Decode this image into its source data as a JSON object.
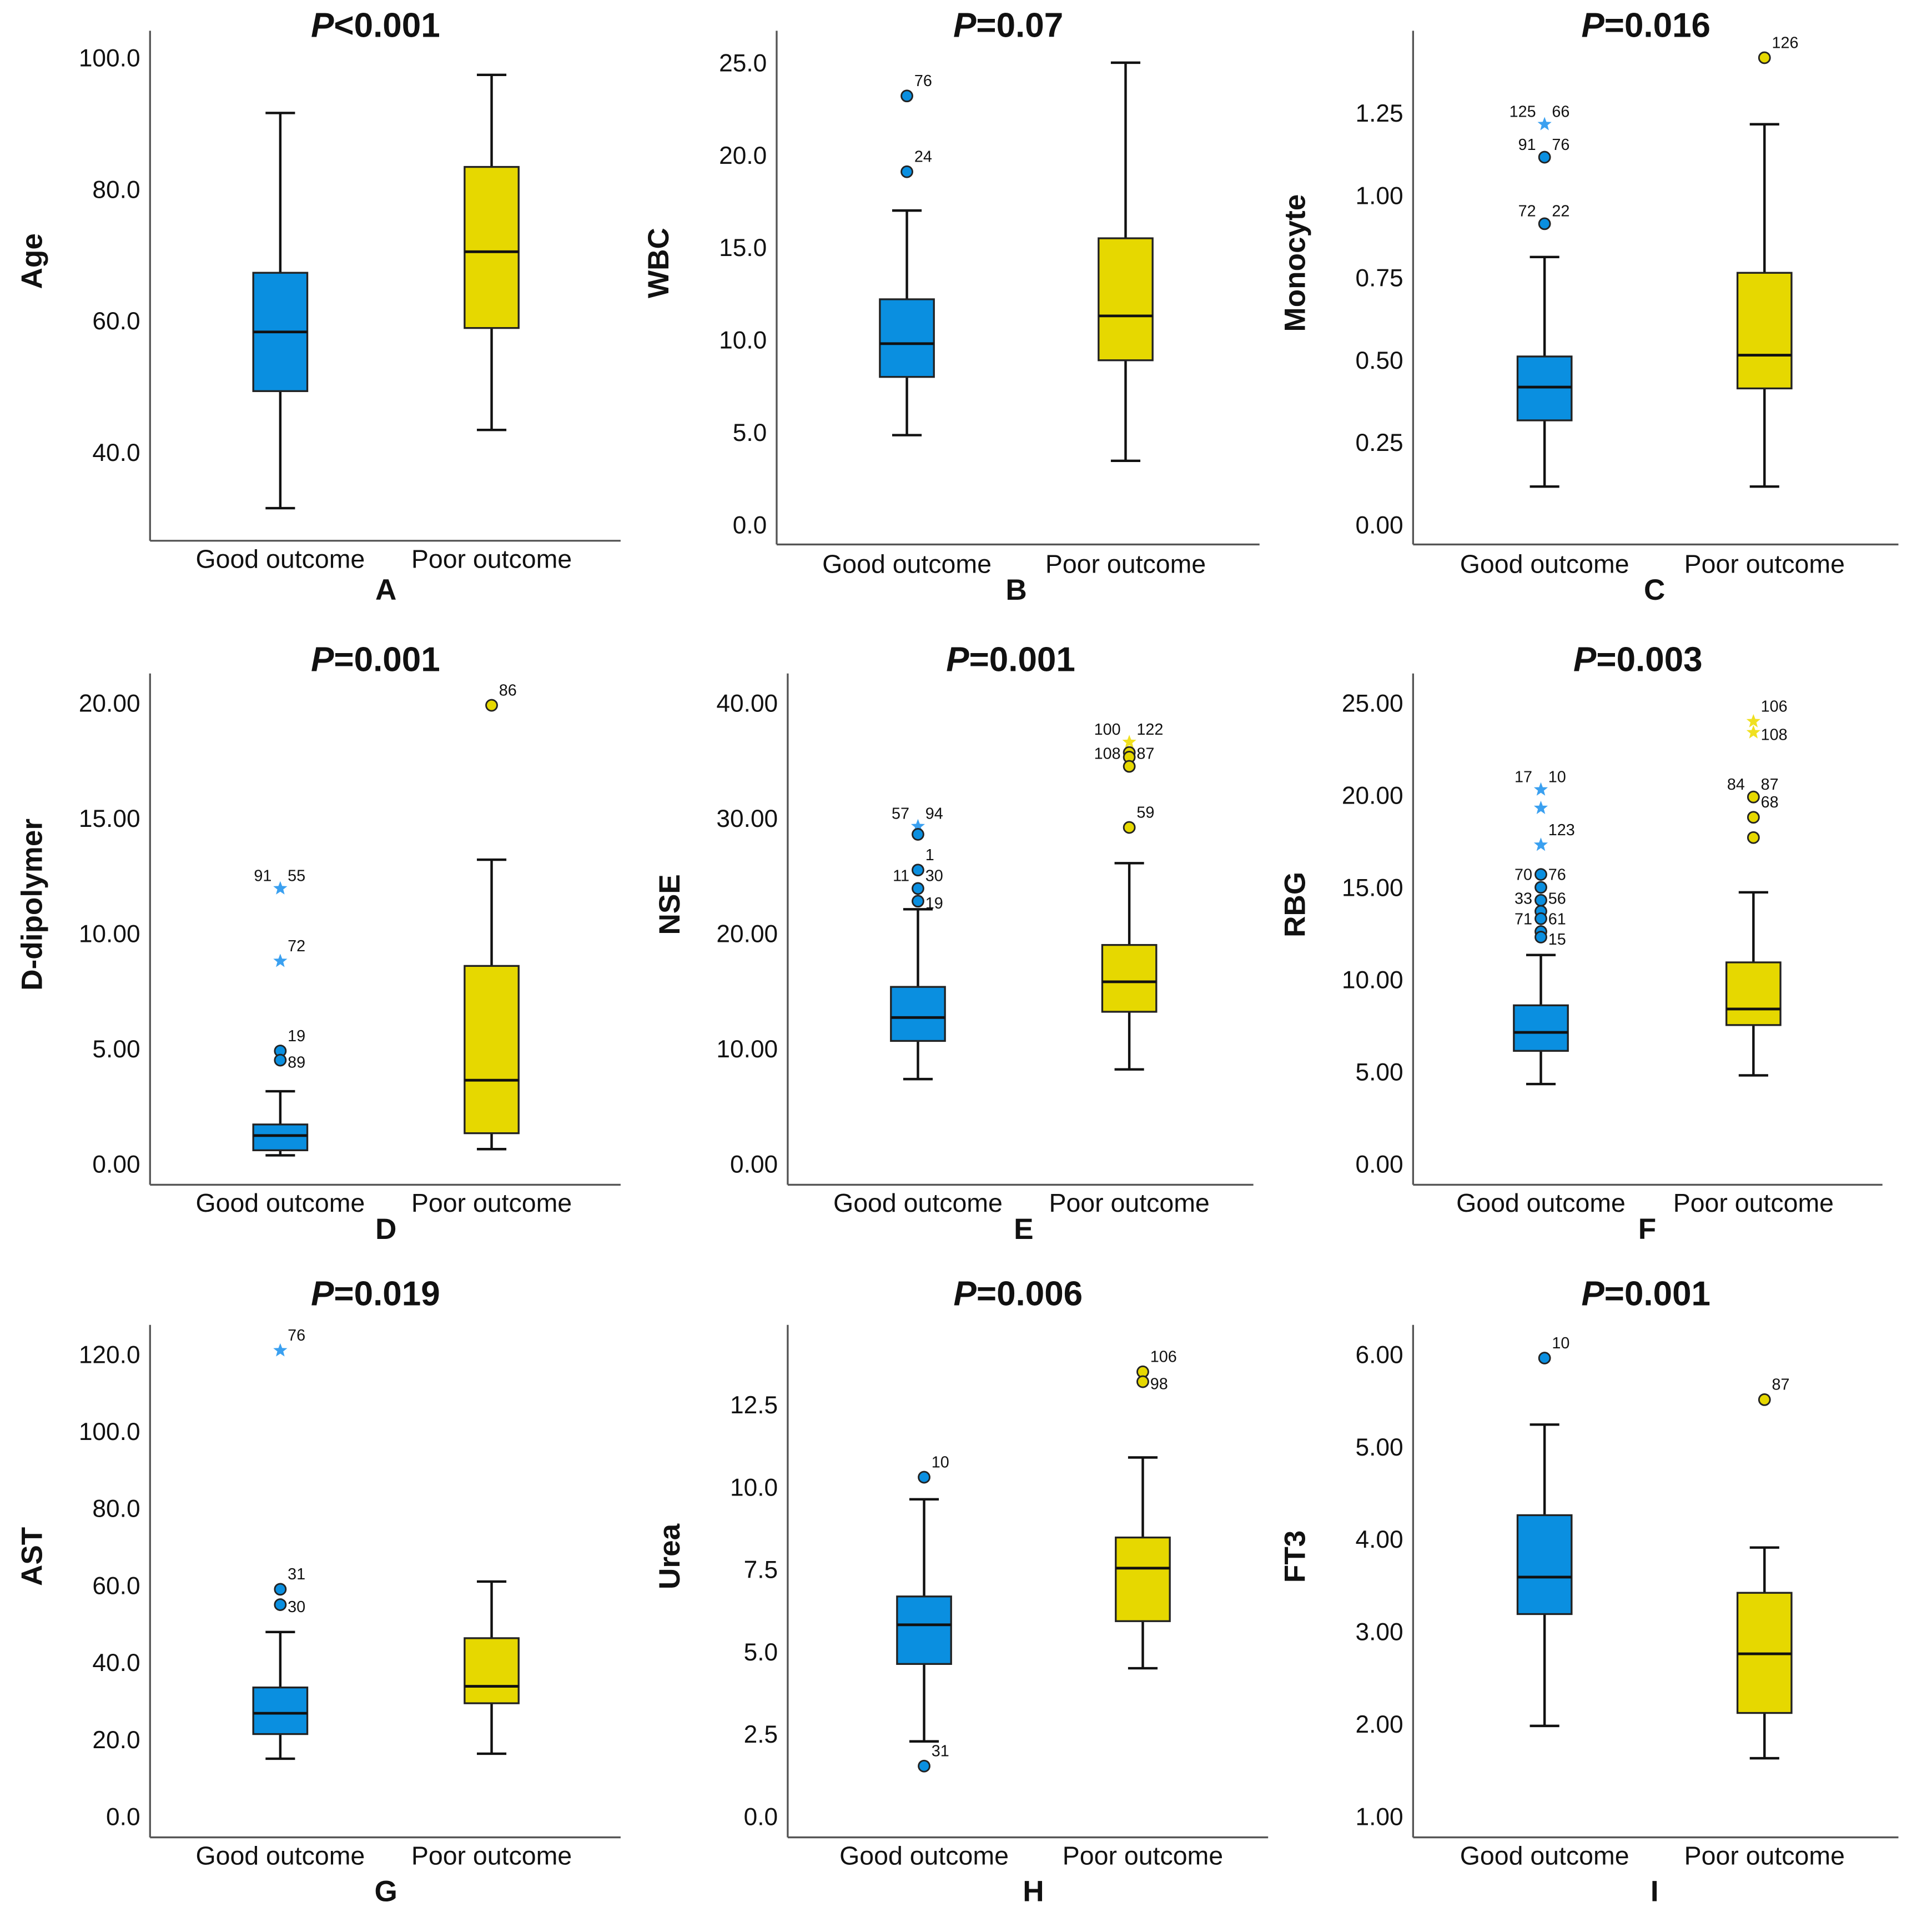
{
  "colors": {
    "good": "#0a8fe0",
    "poor": "#e6d800",
    "good_star": "#3aa0f0",
    "poor_star": "#f0e020"
  },
  "chart_data": [
    {
      "type": "box",
      "panel": "A",
      "title_p": "P",
      "title_rest": "<0.001",
      "ylabel": "Age",
      "categories": [
        "Good outcome",
        "Poor outcome"
      ],
      "ticks": [
        40,
        60,
        80,
        100
      ],
      "tick_labels": [
        "40.0",
        "60.0",
        "80.0",
        "100.0"
      ],
      "groups": [
        {
          "min": 31.5,
          "q1": 49.3,
          "median": 58.3,
          "q3": 67.3,
          "max": 91.6,
          "outliers": []
        },
        {
          "min": 43.4,
          "q1": 58.9,
          "median": 70.5,
          "q3": 83.4,
          "max": 97.4,
          "outliers": []
        }
      ]
    },
    {
      "type": "box",
      "panel": "B",
      "title_p": "P",
      "title_rest": "=0.07",
      "ylabel": "WBC",
      "categories": [
        "Good outcome",
        "Poor outcome"
      ],
      "ticks": [
        0,
        5,
        10,
        15,
        20,
        25
      ],
      "tick_labels": [
        "0.0",
        "5.0",
        "10.0",
        "15.0",
        "20.0",
        "25.0"
      ],
      "groups": [
        {
          "min": 4.85,
          "q1": 8.0,
          "median": 9.8,
          "q3": 12.2,
          "max": 17.0,
          "outliers": [
            {
              "value": 23.2,
              "shape": "circle",
              "labels": [
                "76"
              ]
            },
            {
              "value": 19.1,
              "shape": "circle",
              "labels": [
                "24"
              ]
            }
          ]
        },
        {
          "min": 3.46,
          "q1": 8.9,
          "median": 11.3,
          "q3": 15.5,
          "max": 25.0,
          "outliers": []
        }
      ]
    },
    {
      "type": "box",
      "panel": "C",
      "title_p": "P",
      "title_rest": "=0.016",
      "ylabel": "Monocyte",
      "categories": [
        "Good outcome",
        "Poor outcome"
      ],
      "ticks": [
        0,
        0.25,
        0.5,
        0.75,
        1.0,
        1.25
      ],
      "tick_labels": [
        "0.00",
        "0.25",
        "0.50",
        "0.75",
        "1.00",
        "1.25"
      ],
      "groups": [
        {
          "min": 0.116,
          "q1": 0.317,
          "median": 0.418,
          "q3": 0.511,
          "max": 0.813,
          "outliers": [
            {
              "value": 1.216,
              "shape": "star",
              "labels": [
                "125",
                "66"
              ]
            },
            {
              "value": 1.116,
              "shape": "circle",
              "labels": [
                "91",
                "76"
              ]
            },
            {
              "value": 0.914,
              "shape": "circle",
              "labels": [
                "72",
                "22"
              ]
            }
          ]
        },
        {
          "min": 0.116,
          "q1": 0.414,
          "median": 0.515,
          "q3": 0.765,
          "max": 1.216,
          "outliers": [
            {
              "value": 1.418,
              "shape": "circle",
              "labels": [
                "126"
              ]
            }
          ]
        }
      ]
    },
    {
      "type": "box",
      "panel": "D",
      "title_p": "P",
      "title_rest": "=0.001",
      "ylabel": "D-dipolymer",
      "categories": [
        "Good outcome",
        "Poor outcome"
      ],
      "ticks": [
        0,
        5,
        10,
        15,
        20
      ],
      "tick_labels": [
        "0.00",
        "5.00",
        "10.00",
        "15.00",
        "20.00"
      ],
      "groups": [
        {
          "min": 0.37,
          "q1": 0.59,
          "median": 1.23,
          "q3": 1.71,
          "max": 3.15,
          "outliers": [
            {
              "value": 11.95,
              "shape": "star",
              "labels": [
                "91",
                "55"
              ]
            },
            {
              "value": 8.8,
              "shape": "star",
              "labels": [
                "72"
              ]
            },
            {
              "value": 4.9,
              "shape": "circle",
              "labels": [
                "19"
              ]
            },
            {
              "value": 4.5,
              "shape": "circle",
              "labels": [
                "89"
              ]
            }
          ]
        },
        {
          "min": 0.64,
          "q1": 1.33,
          "median": 3.63,
          "q3": 8.59,
          "max": 13.2,
          "outliers": [
            {
              "value": 19.9,
              "shape": "circle",
              "labels": [
                "86"
              ]
            }
          ]
        }
      ]
    },
    {
      "type": "box",
      "panel": "E",
      "title_p": "P",
      "title_rest": "=0.001",
      "ylabel": "NSE",
      "categories": [
        "Good outcome",
        "Poor outcome"
      ],
      "ticks": [
        0,
        10,
        20,
        30,
        40
      ],
      "tick_labels": [
        "0.00",
        "10.00",
        "20.00",
        "30.00",
        "40.00"
      ],
      "groups": [
        {
          "min": 7.36,
          "q1": 10.67,
          "median": 12.7,
          "q3": 15.36,
          "max": 22.1,
          "outliers": [
            {
              "value": 29.3,
              "shape": "star",
              "labels": [
                "57",
                "94"
              ]
            },
            {
              "value": 28.6,
              "shape": "circle",
              "labels": []
            },
            {
              "value": 25.5,
              "shape": "circle",
              "labels": [
                "1"
              ]
            },
            {
              "value": 23.9,
              "shape": "circle",
              "labels": [
                "11",
                "30"
              ]
            },
            {
              "value": 22.8,
              "shape": "circle",
              "labels": [
                "19"
              ]
            }
          ]
        },
        {
          "min": 8.2,
          "q1": 13.2,
          "median": 15.8,
          "q3": 19.0,
          "max": 26.1,
          "outliers": [
            {
              "value": 36.6,
              "shape": "star",
              "labels": [
                "100",
                "122"
              ]
            },
            {
              "value": 35.7,
              "shape": "circle",
              "labels": []
            },
            {
              "value": 35.3,
              "shape": "circle",
              "labels": []
            },
            {
              "value": 34.5,
              "shape": "circle",
              "labels": [
                "108",
                "87"
              ]
            },
            {
              "value": 29.2,
              "shape": "circle",
              "labels": [
                "59"
              ]
            }
          ]
        }
      ]
    },
    {
      "type": "box",
      "panel": "F",
      "title_p": "P",
      "title_rest": "=0.003",
      "ylabel": "RBG",
      "categories": [
        "Good outcome",
        "Poor outcome"
      ],
      "ticks": [
        0,
        5,
        10,
        15,
        20,
        25
      ],
      "tick_labels": [
        "0.00",
        "5.00",
        "10.00",
        "15.00",
        "20.00",
        "25.00"
      ],
      "groups": [
        {
          "min": 4.33,
          "q1": 6.13,
          "median": 7.13,
          "q3": 8.6,
          "max": 11.33,
          "outliers": [
            {
              "value": 20.3,
              "shape": "star",
              "labels": [
                "17",
                "10"
              ]
            },
            {
              "value": 19.3,
              "shape": "star",
              "labels": []
            },
            {
              "value": 17.3,
              "shape": "star",
              "labels": [
                "123"
              ]
            },
            {
              "value": 15.7,
              "shape": "circle",
              "labels": []
            },
            {
              "value": 15.0,
              "shape": "circle",
              "labels": [
                "70",
                "76"
              ]
            },
            {
              "value": 14.3,
              "shape": "circle",
              "labels": []
            },
            {
              "value": 13.7,
              "shape": "circle",
              "labels": [
                "33",
                "56"
              ]
            },
            {
              "value": 13.3,
              "shape": "circle",
              "labels": []
            },
            {
              "value": 12.6,
              "shape": "circle",
              "labels": [
                "71",
                "61"
              ]
            },
            {
              "value": 12.3,
              "shape": "circle",
              "labels": [
                "15"
              ]
            }
          ]
        },
        {
          "min": 4.8,
          "q1": 7.53,
          "median": 8.4,
          "q3": 10.93,
          "max": 14.73,
          "outliers": [
            {
              "value": 24.0,
              "shape": "star",
              "labels": [
                "106"
              ]
            },
            {
              "value": 23.4,
              "shape": "star",
              "labels": [
                "108"
              ]
            },
            {
              "value": 19.9,
              "shape": "circle",
              "labels": [
                "84",
                "87"
              ]
            },
            {
              "value": 18.8,
              "shape": "circle",
              "labels": [
                "68"
              ]
            },
            {
              "value": 17.7,
              "shape": "circle",
              "labels": []
            }
          ]
        }
      ]
    },
    {
      "type": "box",
      "panel": "G",
      "title_p": "P",
      "title_rest": "=0.019",
      "ylabel": "AST",
      "categories": [
        "Good outcome",
        "Poor outcome"
      ],
      "ticks": [
        0,
        20,
        40,
        60,
        80,
        100,
        120
      ],
      "tick_labels": [
        "0.0",
        "20.0",
        "40.0",
        "60.0",
        "80.0",
        "100.0",
        "120.0"
      ],
      "groups": [
        {
          "min": 15,
          "q1": 21.4,
          "median": 26.8,
          "q3": 33.5,
          "max": 47.9,
          "outliers": [
            {
              "value": 121,
              "shape": "star",
              "labels": [
                "76"
              ]
            },
            {
              "value": 59,
              "shape": "circle",
              "labels": [
                "31"
              ]
            },
            {
              "value": 55,
              "shape": "circle",
              "labels": [
                "30"
              ]
            }
          ]
        },
        {
          "min": 16.3,
          "q1": 29.4,
          "median": 33.8,
          "q3": 46.3,
          "max": 61,
          "outliers": []
        }
      ]
    },
    {
      "type": "box",
      "panel": "H",
      "title_p": "P",
      "title_rest": "=0.006",
      "ylabel": "Urea",
      "categories": [
        "Good outcome",
        "Poor outcome"
      ],
      "ticks": [
        0,
        2.5,
        5,
        7.5,
        10,
        12.5
      ],
      "tick_labels": [
        "0.0",
        "2.5",
        "5.0",
        "7.5",
        "10.0",
        "12.5"
      ],
      "groups": [
        {
          "min": 2.28,
          "q1": 4.63,
          "median": 5.82,
          "q3": 6.68,
          "max": 9.63,
          "outliers": [
            {
              "value": 10.3,
              "shape": "circle",
              "labels": [
                "10"
              ]
            },
            {
              "value": 1.53,
              "shape": "circle",
              "labels": [
                "31"
              ]
            }
          ]
        },
        {
          "min": 4.5,
          "q1": 5.93,
          "median": 7.54,
          "q3": 8.47,
          "max": 10.9,
          "outliers": [
            {
              "value": 13.5,
              "shape": "circle",
              "labels": [
                "106"
              ]
            },
            {
              "value": 13.2,
              "shape": "circle",
              "labels": [
                "98"
              ]
            }
          ]
        }
      ]
    },
    {
      "type": "box",
      "panel": "I",
      "title_p": "P",
      "title_rest": "=0.001",
      "ylabel": "FT3",
      "categories": [
        "Good outcome",
        "Poor outcome"
      ],
      "ticks": [
        1,
        2,
        3,
        4,
        5,
        6
      ],
      "tick_labels": [
        "1.00",
        "2.00",
        "3.00",
        "4.00",
        "5.00",
        "6.00"
      ],
      "groups": [
        {
          "min": 1.98,
          "q1": 3.19,
          "median": 3.59,
          "q3": 4.26,
          "max": 5.24,
          "outliers": [
            {
              "value": 5.96,
              "shape": "circle",
              "labels": [
                "10"
              ]
            }
          ]
        },
        {
          "min": 1.63,
          "q1": 2.12,
          "median": 2.76,
          "q3": 3.42,
          "max": 3.91,
          "outliers": [
            {
              "value": 5.51,
              "shape": "circle",
              "labels": [
                "87"
              ]
            }
          ]
        }
      ]
    }
  ]
}
